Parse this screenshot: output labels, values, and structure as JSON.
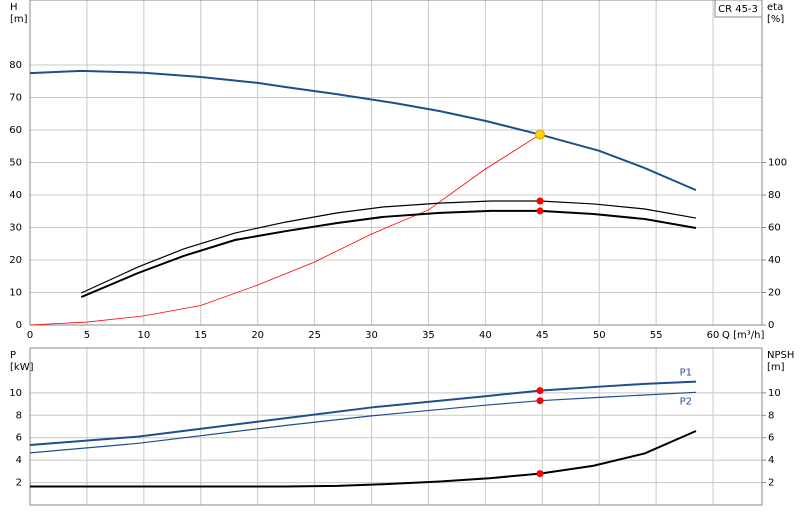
{
  "chart_data": [
    {
      "type": "line",
      "model": "CR 45-3",
      "ylabel": "H",
      "yunit": "[m]",
      "y2label": "eta",
      "y2unit": "[%]",
      "xlabel": "Q [m³/h]",
      "xlim": [
        0,
        64.3
      ],
      "xticks": [
        0,
        5,
        10,
        15,
        20,
        25,
        30,
        35,
        40,
        45,
        50,
        55,
        60
      ],
      "ylim": [
        0,
        100
      ],
      "yticks": [
        0,
        10,
        20,
        30,
        40,
        50,
        60,
        70,
        80
      ],
      "y2lim": [
        0,
        200
      ],
      "y2ticks": [
        0,
        20,
        40,
        60,
        80,
        100
      ],
      "grid": true,
      "series": [
        {
          "color": "#1f4e8c",
          "width": 2,
          "x": [
            0,
            4.5,
            10,
            15,
            20,
            22.5,
            27,
            32,
            36,
            40,
            44.8,
            50,
            54,
            58.5
          ],
          "values": [
            77.5,
            78.2,
            77.6,
            76.3,
            74.5,
            73.2,
            71,
            68.3,
            65.8,
            62.8,
            58.6,
            53.6,
            48.3,
            41.5
          ]
        },
        {
          "color": "#ff0000",
          "width": 0.8,
          "x": [
            0,
            5,
            10,
            15,
            20,
            25,
            30,
            35,
            40,
            44.8
          ],
          "values": [
            0,
            0.9,
            2.8,
            6,
            12.3,
            19.4,
            28,
            35.4,
            48,
            58.6
          ]
        },
        {
          "color": "#000000",
          "width": 1.2,
          "axis": "y2",
          "x": [
            4.5,
            9.5,
            13.5,
            18,
            22.5,
            27,
            31,
            36,
            40.5,
            44.8,
            49.5,
            54,
            58.5
          ],
          "values": [
            19.7,
            35.7,
            46.8,
            56.6,
            63.4,
            69,
            72.6,
            75,
            76.3,
            76.3,
            74.5,
            71.4,
            65.8
          ]
        },
        {
          "color": "#000000",
          "width": 2,
          "axis": "y2",
          "x": [
            4.5,
            9.5,
            13.5,
            18,
            22.5,
            27,
            31,
            36,
            40.5,
            44.8,
            49.5,
            54,
            58.5
          ],
          "values": [
            17.2,
            32,
            42.5,
            52.3,
            57.8,
            62.8,
            66.5,
            69,
            70.2,
            70.2,
            68.3,
            65.2,
            59.7
          ]
        }
      ],
      "markers": [
        {
          "x": 44.8,
          "y": 58.6,
          "color": "#ffd700"
        },
        {
          "x": 44.8,
          "y": 76.3,
          "color": "#ff0000",
          "axis": "y2"
        },
        {
          "x": 44.8,
          "y": 70.2,
          "color": "#ff0000",
          "axis": "y2"
        }
      ]
    },
    {
      "type": "line",
      "ylabel": "P",
      "yunit": "[kW]",
      "y2label": "NPSH",
      "y2unit": "[m]",
      "xlim": [
        0,
        64.3
      ],
      "ylim": [
        0,
        14
      ],
      "yticks": [
        2,
        4,
        6,
        8,
        10
      ],
      "y2lim": [
        0,
        14
      ],
      "y2ticks": [
        2,
        4,
        6,
        8,
        10
      ],
      "grid": true,
      "series": [
        {
          "name": "P1",
          "color": "#1f4e8c",
          "width": 2,
          "x": [
            0,
            9.5,
            22.5,
            30,
            40,
            44.8,
            50,
            54,
            58.5
          ],
          "values": [
            5.35,
            6.1,
            7.75,
            8.7,
            9.7,
            10.2,
            10.55,
            10.8,
            11
          ]
        },
        {
          "name": "P2",
          "color": "#1f4e8c",
          "width": 1.2,
          "x": [
            0,
            9.5,
            22.5,
            30,
            40,
            44.8,
            50,
            58.5
          ],
          "values": [
            4.65,
            5.5,
            7.1,
            7.95,
            8.9,
            9.3,
            9.6,
            10.05
          ]
        },
        {
          "color": "#000000",
          "width": 2,
          "axis": "y2",
          "x": [
            0,
            4.5,
            22.5,
            27,
            31,
            36,
            40.5,
            44.8,
            49.5,
            54,
            58.5
          ],
          "values": [
            1.65,
            1.65,
            1.65,
            1.7,
            1.85,
            2.1,
            2.4,
            2.8,
            3.5,
            4.6,
            6.6
          ]
        }
      ],
      "markers": [
        {
          "x": 44.8,
          "y": 10.2,
          "color": "#ff0000"
        },
        {
          "x": 44.8,
          "y": 9.3,
          "color": "#ff0000"
        },
        {
          "x": 44.8,
          "y": 2.8,
          "color": "#ff0000",
          "axis": "y2"
        }
      ]
    }
  ]
}
